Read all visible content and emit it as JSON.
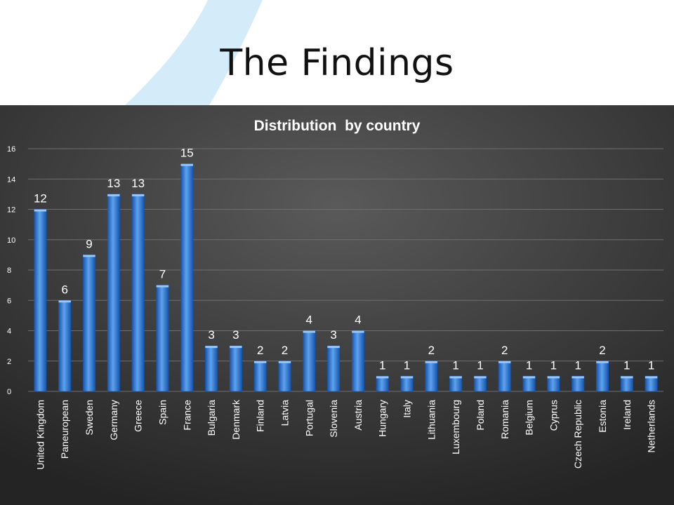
{
  "slide": {
    "title": "The Findings"
  },
  "colors": {
    "bar_light": "#5fa2ec",
    "bar_dark": "#1555b0",
    "bar_top": "#9cc7f5",
    "panel_light": "#5a5a5a",
    "panel_dark": "#242424",
    "gridline": "#6e6e6e",
    "text": "#ffffff",
    "decor": "#d4ebfa"
  },
  "chart_data": {
    "type": "bar",
    "title": "Distribution  by country",
    "xlabel": "",
    "ylabel": "",
    "ylim": [
      0,
      16
    ],
    "yticks": [
      0,
      2,
      4,
      6,
      8,
      10,
      12,
      14,
      16
    ],
    "grid": true,
    "legend": "none",
    "categories": [
      "United Kingdom",
      "Paneuropean",
      "Sweden",
      "Germany",
      "Greece",
      "Spain",
      "France",
      "Bulgaria",
      "Denmark",
      "Finland",
      "Latvia",
      "Portugal",
      "Slovenia",
      "Austria",
      "Hungary",
      "Italy",
      "Lithuania",
      "Luxembourg",
      "Poland",
      "Romania",
      "Belgium",
      "Cyprus",
      "Czech Republic",
      "Estonia",
      "Ireland",
      "Netherlands"
    ],
    "values": [
      12,
      6,
      9,
      13,
      13,
      7,
      15,
      3,
      3,
      2,
      2,
      4,
      3,
      4,
      1,
      1,
      2,
      1,
      1,
      2,
      1,
      1,
      1,
      2,
      1,
      1
    ],
    "data_labels": [
      "12",
      "6",
      "9",
      "13",
      "13",
      "7",
      "15",
      "3",
      "3",
      "2",
      "2",
      "4",
      "3",
      "4",
      "1",
      "1",
      "2",
      "1",
      "1",
      "2",
      "1",
      "1",
      "1",
      "2",
      "1",
      "1"
    ]
  }
}
